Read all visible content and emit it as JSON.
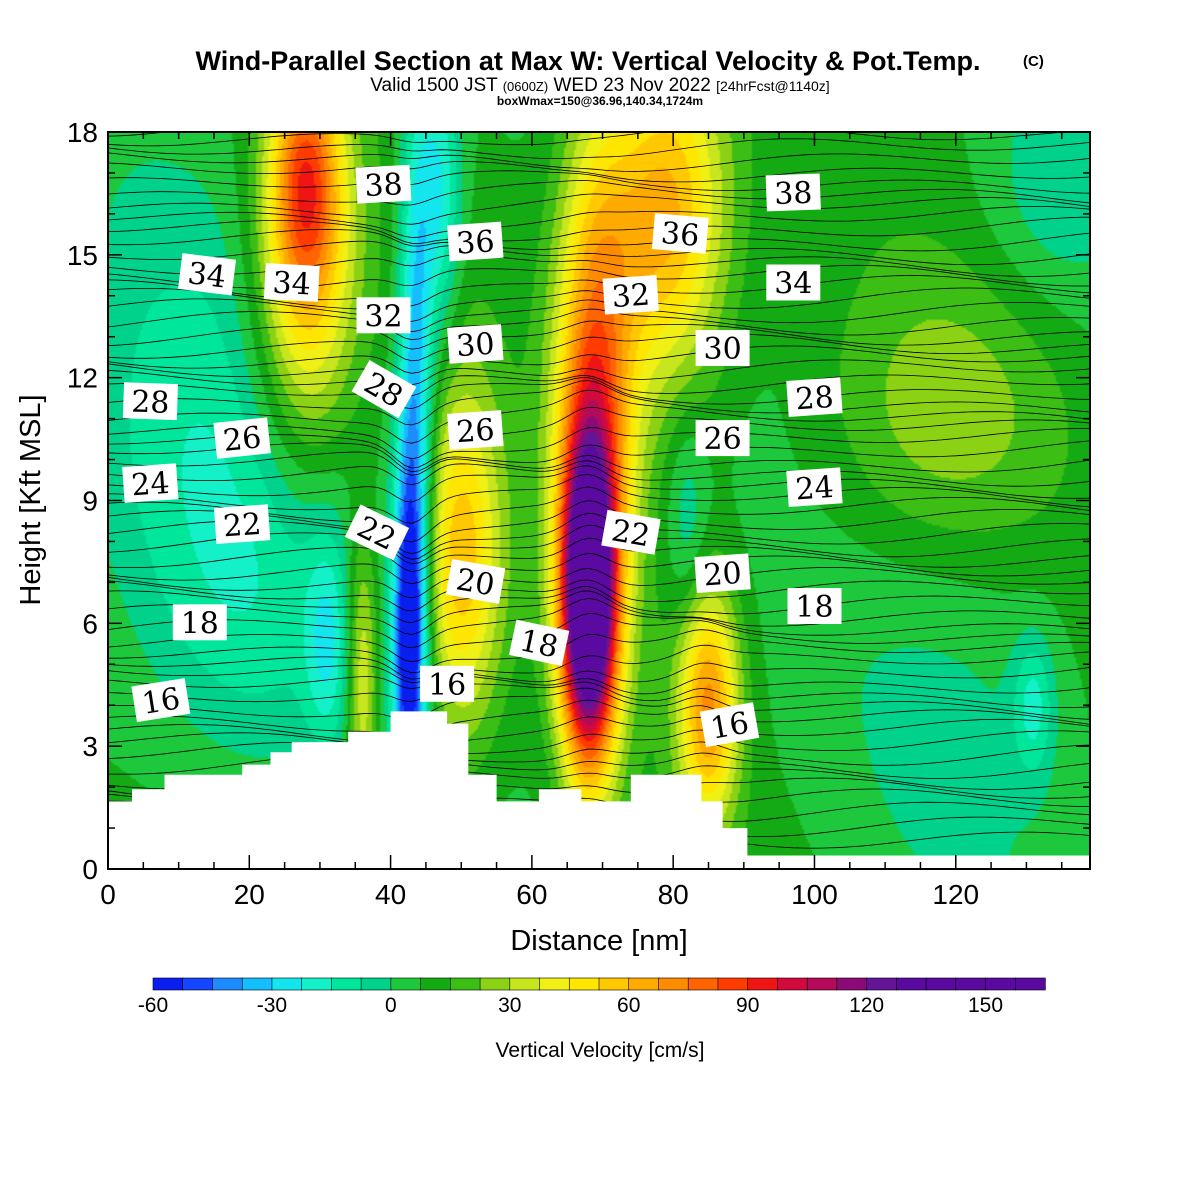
{
  "header": {
    "title": "Wind-Parallel Section at Max W: Vertical Velocity & Pot.Temp.",
    "copyright_mark": "(C)",
    "valid_prefix": "Valid 1500 JST",
    "valid_utc": "(0600Z)",
    "valid_date": "WED 23 Nov 2022",
    "forecast_tag": "[24hrFcst@1140z]",
    "box_info": "boxWmax=150@36.96,140.34,1724m"
  },
  "chart_data": {
    "type": "heatmap",
    "title": "Wind-Parallel Section at Max W: Vertical Velocity & Pot.Temp.",
    "xlabel": "Distance [nm]",
    "ylabel": "Height [Kft MSL]",
    "xlim": [
      0,
      139
    ],
    "ylim": [
      0,
      18
    ],
    "x_ticks": [
      0,
      20,
      40,
      60,
      80,
      100,
      120
    ],
    "y_ticks": [
      0,
      3,
      6,
      9,
      12,
      15,
      18
    ],
    "x_tick_labels": [
      "0",
      "20",
      "40",
      "60",
      "80",
      "100",
      "120"
    ],
    "y_tick_labels": [
      "0",
      "3",
      "6",
      "9",
      "12",
      "15",
      "18"
    ],
    "colorbar": {
      "label": "Vertical Velocity [cm/s]",
      "min": -60,
      "max": 165,
      "step": 7.5,
      "tick_values": [
        -60,
        -30,
        0,
        30,
        60,
        90,
        120,
        150
      ],
      "tick_labels": [
        "-60",
        "-30",
        "0",
        "30",
        "60",
        "90",
        "120",
        "150"
      ],
      "colors": [
        "#0a1ef0",
        "#1446ff",
        "#1e8cff",
        "#14beff",
        "#14e6f0",
        "#14f0c8",
        "#00e69b",
        "#00d28c",
        "#1ec83c",
        "#14aa14",
        "#3cbe14",
        "#8cd214",
        "#c8e61e",
        "#f0f014",
        "#ffe600",
        "#ffc800",
        "#ffaa00",
        "#ff8c00",
        "#ff6400",
        "#ff3c00",
        "#f01414",
        "#d20a3c",
        "#b40a5a",
        "#8c0a78",
        "#641496",
        "#5a0aa0",
        "#5a0aa0",
        "#5a0aa0",
        "#5a0aa0",
        "#5a0aa0"
      ]
    },
    "velocity_features": [
      {
        "x": 10,
        "z": 10.5,
        "sx": 12,
        "sz": 4,
        "w": -18
      },
      {
        "x": 28,
        "z": 14.2,
        "sx": 5,
        "sz": 3,
        "w": 45
      },
      {
        "x": 28,
        "z": 17,
        "sx": 3.5,
        "sz": 2,
        "w": 55
      },
      {
        "x": 20,
        "z": 6,
        "sx": 10,
        "sz": 3,
        "w": -15
      },
      {
        "x": 31,
        "z": 5.5,
        "sx": 2.2,
        "sz": 1.8,
        "w": -22
      },
      {
        "x": 36,
        "z": 4.8,
        "sx": 1.6,
        "sz": 2.5,
        "w": 35
      },
      {
        "x": 42.5,
        "z": 5.5,
        "sx": 1.6,
        "sz": 3,
        "w": -58
      },
      {
        "x": 43.5,
        "z": 11,
        "sx": 1.8,
        "sz": 5.5,
        "w": -45
      },
      {
        "x": 47,
        "z": 16.5,
        "sx": 2.2,
        "sz": 2.5,
        "w": -32
      },
      {
        "x": 50,
        "z": 7.5,
        "sx": 4,
        "sz": 3,
        "w": 50
      },
      {
        "x": 68,
        "z": 6.5,
        "sx": 2.7,
        "sz": 2.7,
        "w": 150
      },
      {
        "x": 69,
        "z": 11.5,
        "sx": 4,
        "sz": 4.5,
        "w": 65
      },
      {
        "x": 79,
        "z": 16,
        "sx": 6,
        "sz": 3,
        "w": 58
      },
      {
        "x": 85,
        "z": 4,
        "sx": 3,
        "sz": 2,
        "w": 60
      },
      {
        "x": 82,
        "z": 8.5,
        "sx": 2,
        "sz": 1.8,
        "w": -15
      },
      {
        "x": 122,
        "z": 4,
        "sx": 14,
        "sz": 4,
        "w": -8
      },
      {
        "x": 131,
        "z": 4,
        "sx": 2,
        "sz": 1.2,
        "w": -22
      },
      {
        "x": 118,
        "z": 11,
        "sx": 12,
        "sz": 2.5,
        "w": 18
      },
      {
        "x": 134,
        "z": 16.5,
        "sx": 7,
        "sz": 2,
        "w": -12
      }
    ],
    "terrain_profile": [
      [
        0,
        1.65
      ],
      [
        3.4,
        1.65
      ],
      [
        3.4,
        1.95
      ],
      [
        8,
        1.95
      ],
      [
        8,
        2.3
      ],
      [
        19,
        2.3
      ],
      [
        19,
        2.55
      ],
      [
        23,
        2.55
      ],
      [
        23,
        2.85
      ],
      [
        26,
        2.85
      ],
      [
        26,
        3.1
      ],
      [
        34,
        3.1
      ],
      [
        34,
        3.35
      ],
      [
        40,
        3.35
      ],
      [
        40,
        3.85
      ],
      [
        48,
        3.85
      ],
      [
        48,
        3.55
      ],
      [
        51,
        3.55
      ],
      [
        51,
        2.3
      ],
      [
        55,
        2.3
      ],
      [
        55,
        1.65
      ],
      [
        61,
        1.65
      ],
      [
        61,
        1.95
      ],
      [
        67,
        1.95
      ],
      [
        67,
        1.65
      ],
      [
        74,
        1.65
      ],
      [
        74,
        2.3
      ],
      [
        84,
        2.3
      ],
      [
        84,
        1.65
      ],
      [
        87,
        1.65
      ],
      [
        87,
        1.0
      ],
      [
        90.5,
        1.0
      ],
      [
        90.5,
        0.33
      ],
      [
        139,
        0.33
      ],
      [
        139,
        0
      ]
    ],
    "contour_labels": [
      {
        "text": "38",
        "x": 39,
        "z": 16.7,
        "angle": -3
      },
      {
        "text": "38",
        "x": 97,
        "z": 16.5,
        "angle": -2
      },
      {
        "text": "36",
        "x": 52,
        "z": 15.3,
        "angle": -4
      },
      {
        "text": "36",
        "x": 81,
        "z": 15.5,
        "angle": 5
      },
      {
        "text": "34",
        "x": 14,
        "z": 14.5,
        "angle": 7
      },
      {
        "text": "34",
        "x": 26,
        "z": 14.3,
        "angle": 3
      },
      {
        "text": "34",
        "x": 97,
        "z": 14.3,
        "angle": 0
      },
      {
        "text": "32",
        "x": 39,
        "z": 13.5,
        "angle": 0
      },
      {
        "text": "32",
        "x": 74,
        "z": 14.0,
        "angle": -4
      },
      {
        "text": "30",
        "x": 52,
        "z": 12.8,
        "angle": -4
      },
      {
        "text": "30",
        "x": 87,
        "z": 12.7,
        "angle": 0
      },
      {
        "text": "28",
        "x": 6,
        "z": 11.4,
        "angle": 2
      },
      {
        "text": "28",
        "x": 39,
        "z": 11.7,
        "angle": 30
      },
      {
        "text": "28",
        "x": 100,
        "z": 11.5,
        "angle": -4
      },
      {
        "text": "26",
        "x": 19,
        "z": 10.5,
        "angle": -6
      },
      {
        "text": "26",
        "x": 52,
        "z": 10.7,
        "angle": -4
      },
      {
        "text": "26",
        "x": 87,
        "z": 10.5,
        "angle": 0
      },
      {
        "text": "24",
        "x": 6,
        "z": 9.4,
        "angle": -4
      },
      {
        "text": "24",
        "x": 100,
        "z": 9.3,
        "angle": -4
      },
      {
        "text": "22",
        "x": 19,
        "z": 8.4,
        "angle": -4
      },
      {
        "text": "22",
        "x": 38,
        "z": 8.2,
        "angle": 26
      },
      {
        "text": "22",
        "x": 74,
        "z": 8.2,
        "angle": 10
      },
      {
        "text": "20",
        "x": 52,
        "z": 7.0,
        "angle": 10
      },
      {
        "text": "20",
        "x": 87,
        "z": 7.2,
        "angle": -4
      },
      {
        "text": "18",
        "x": 13,
        "z": 6.0,
        "angle": 0
      },
      {
        "text": "18",
        "x": 61,
        "z": 5.5,
        "angle": 12
      },
      {
        "text": "18",
        "x": 100,
        "z": 6.4,
        "angle": 0
      },
      {
        "text": "16",
        "x": 7.5,
        "z": 4.1,
        "angle": -9
      },
      {
        "text": "16",
        "x": 48,
        "z": 4.5,
        "angle": 0
      },
      {
        "text": "16",
        "x": 88,
        "z": 3.5,
        "angle": -10
      }
    ]
  }
}
